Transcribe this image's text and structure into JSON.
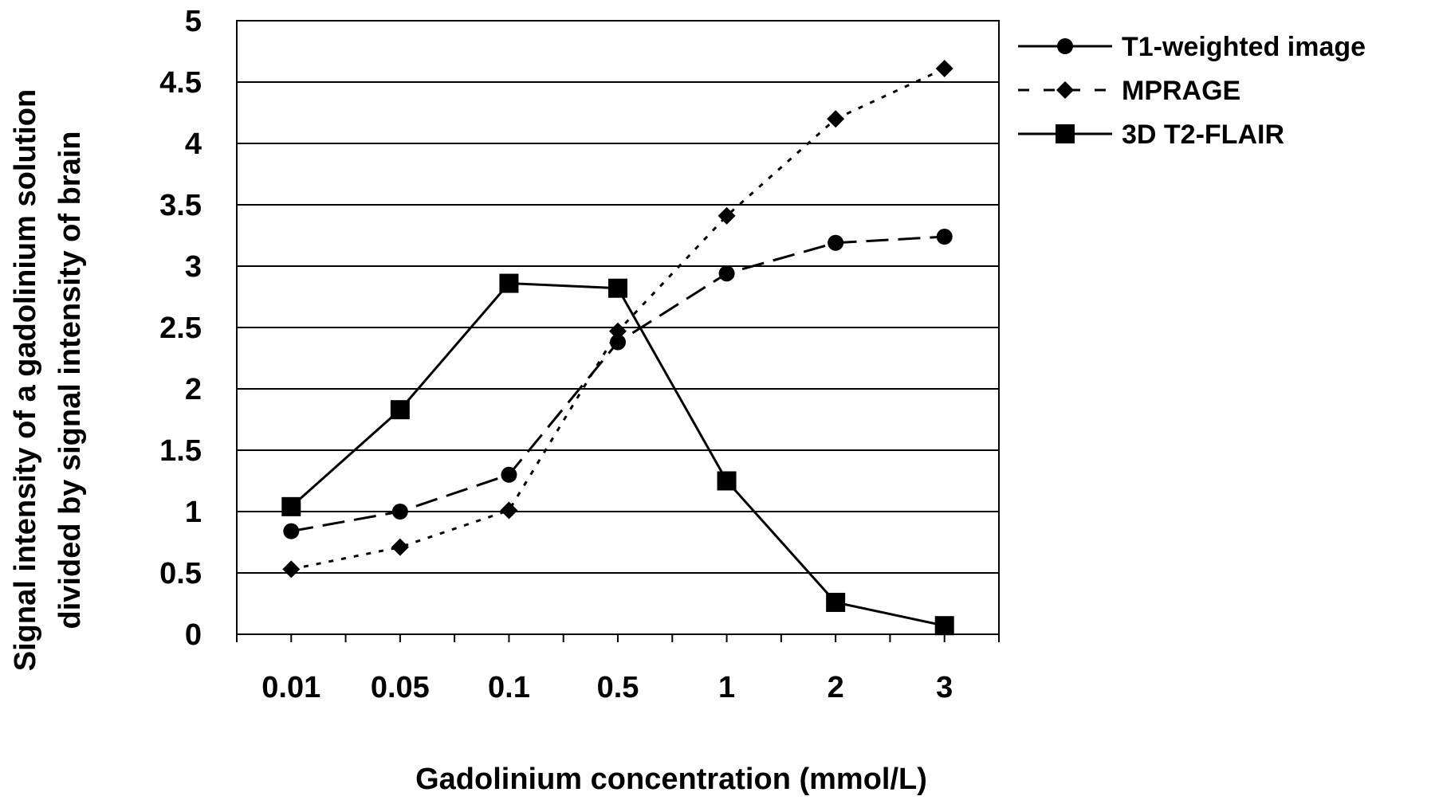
{
  "chart_data": {
    "type": "line",
    "title": "",
    "xlabel": "Gadolinium concentration (mmol/L)",
    "ylabel_lines": [
      "Signal intensity of a gadolinium solution",
      "divided by signal intensity of brain"
    ],
    "categories": [
      "0.01",
      "0.05",
      "0.1",
      "0.5",
      "1",
      "2",
      "3"
    ],
    "yticks": [
      "0",
      "0.5",
      "1",
      "1.5",
      "2",
      "2.5",
      "3",
      "3.5",
      "4",
      "4.5",
      "5"
    ],
    "ylim": [
      0,
      5
    ],
    "grid": "horizontal",
    "legend_position": "top-right",
    "series": [
      {
        "name": "T1-weighted image",
        "marker": "circle",
        "line_style": "long-dash",
        "color": "#000000",
        "values": [
          0.84,
          1.0,
          1.3,
          2.38,
          2.94,
          3.19,
          3.24
        ]
      },
      {
        "name": "MPRAGE",
        "marker": "diamond",
        "line_style": "dotted",
        "color": "#000000",
        "values": [
          0.53,
          0.71,
          1.01,
          2.47,
          3.41,
          4.2,
          4.61
        ]
      },
      {
        "name": "3D T2-FLAIR",
        "marker": "square",
        "line_style": "solid",
        "color": "#000000",
        "values": [
          1.04,
          1.83,
          2.86,
          2.82,
          1.25,
          0.26,
          0.07
        ]
      }
    ]
  }
}
